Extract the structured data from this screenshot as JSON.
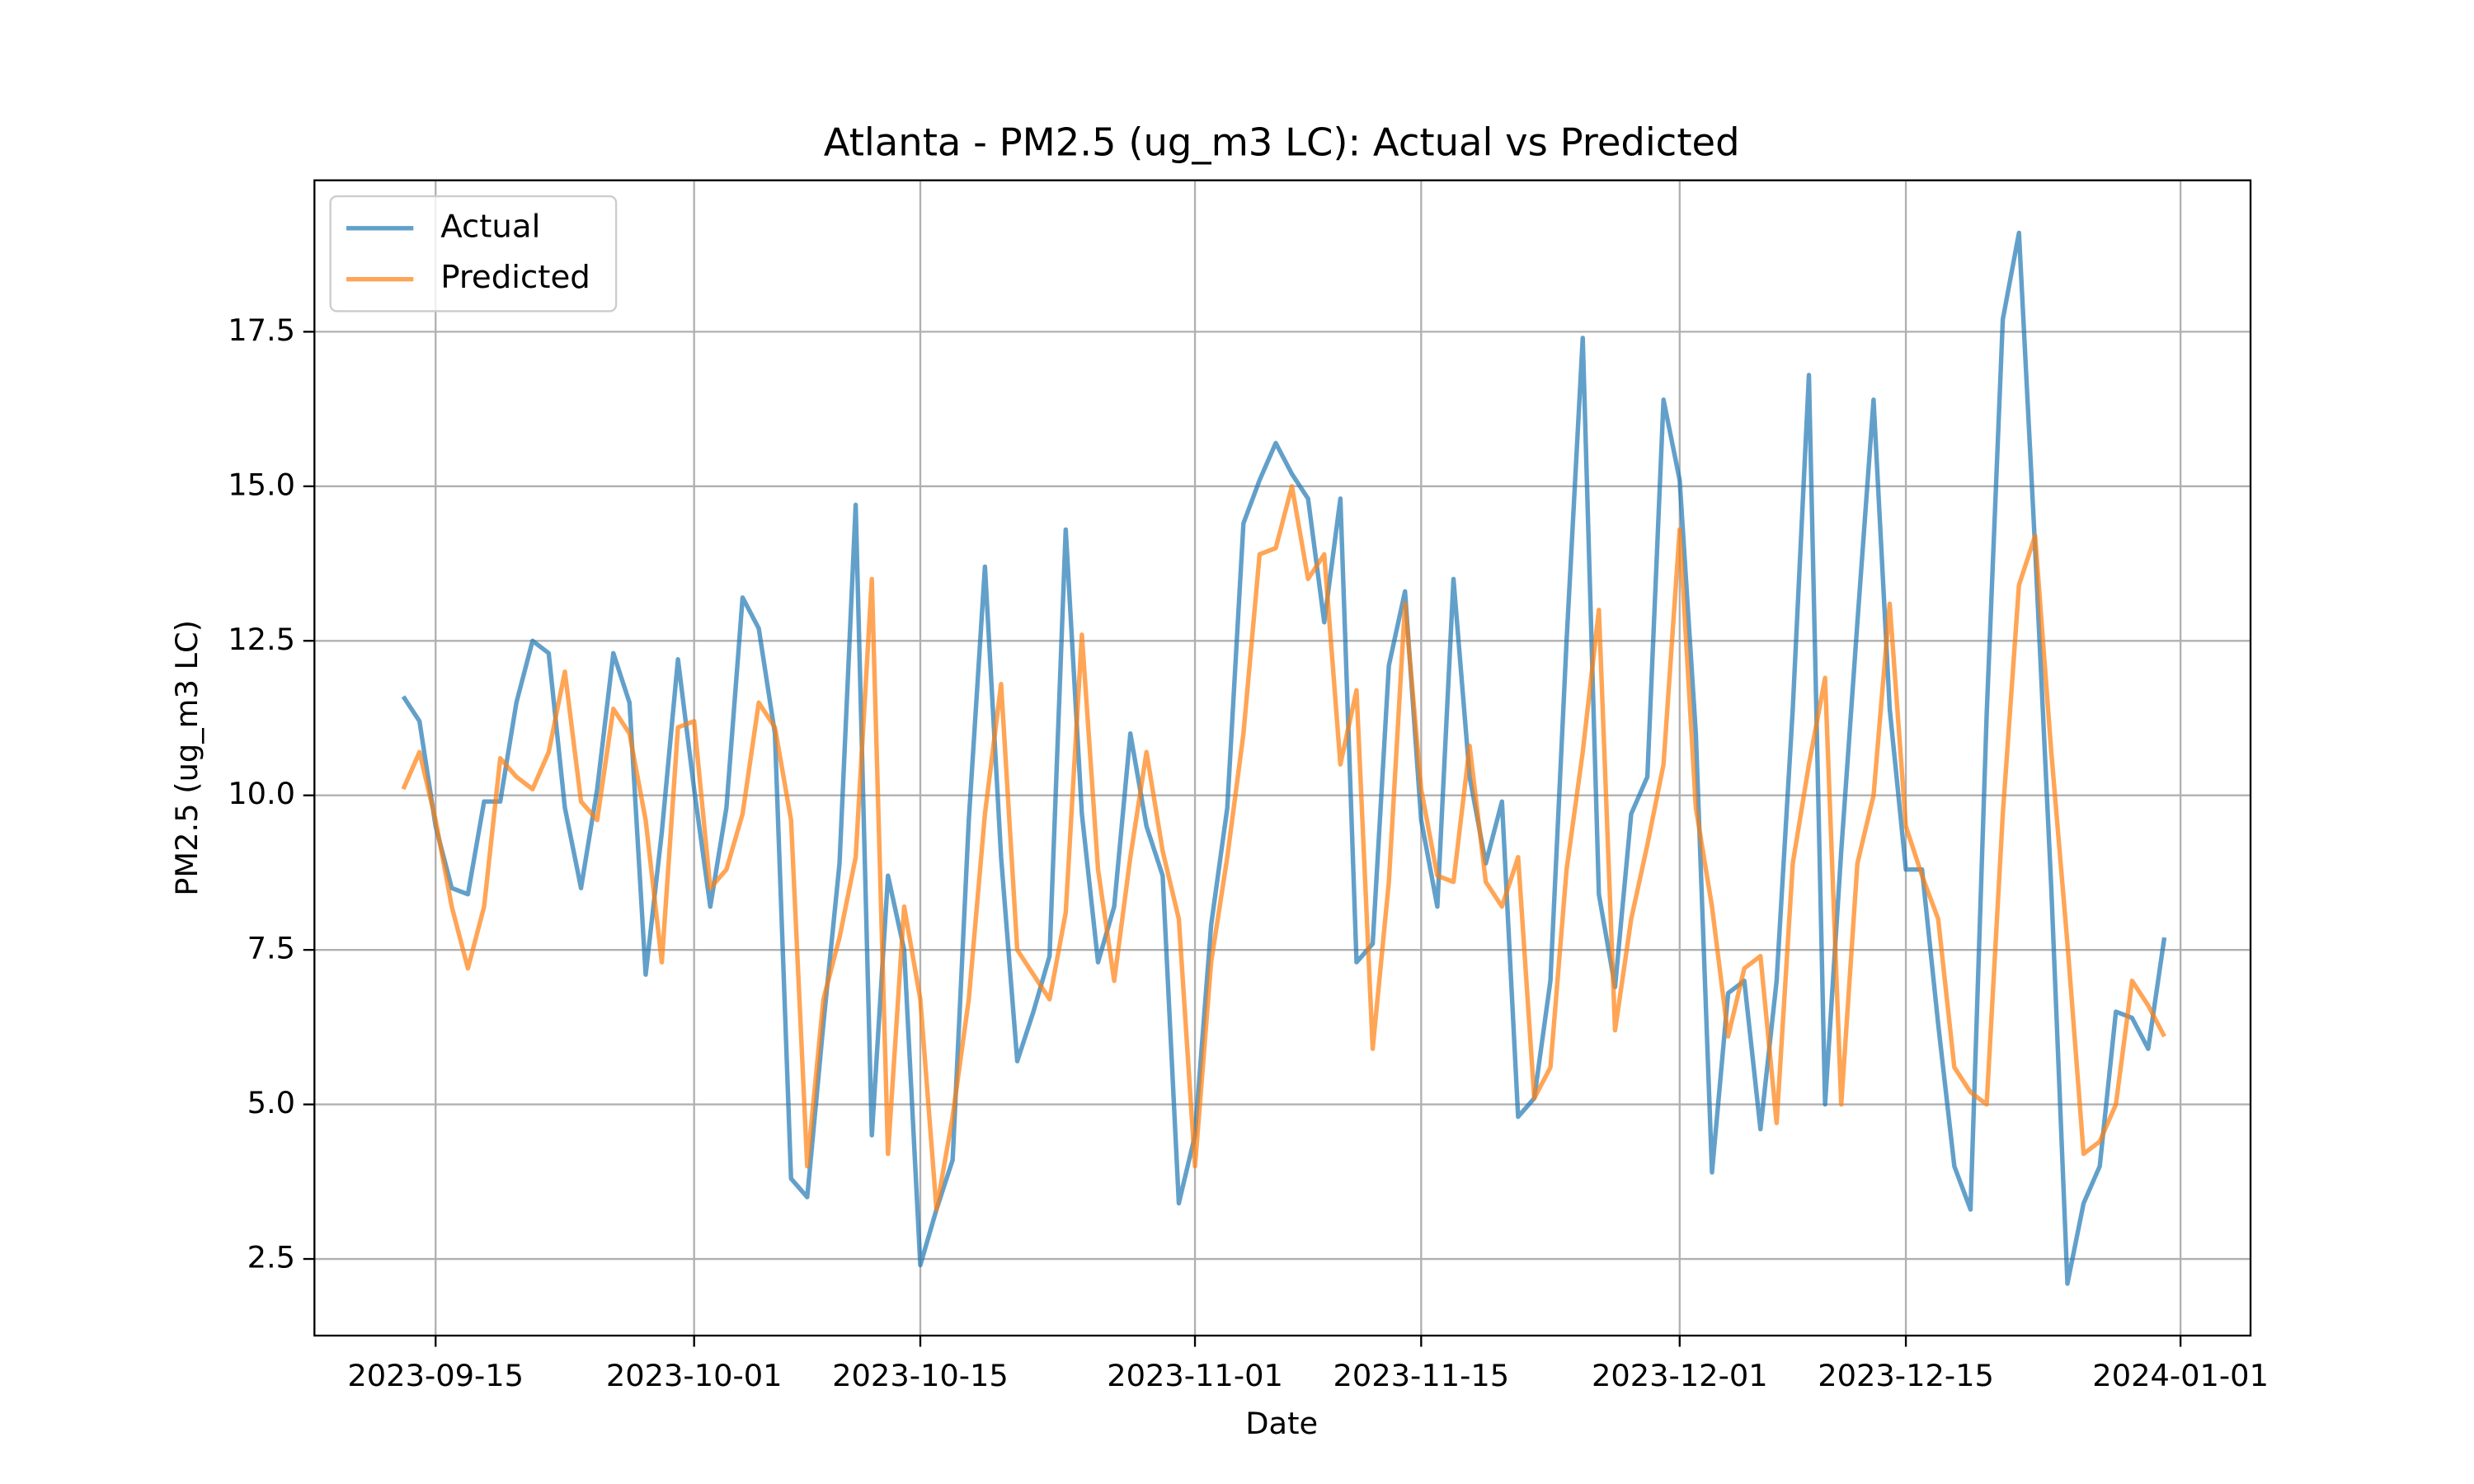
{
  "chart_data": {
    "type": "line",
    "title": "Atlanta - PM2.5 (ug_m3 LC): Actual vs Predicted",
    "x_label": "Date",
    "y_label": "PM2.5 (ug_m3 LC)",
    "x": [
      "2023-09-13",
      "2023-09-14",
      "2023-09-15",
      "2023-09-16",
      "2023-09-17",
      "2023-09-18",
      "2023-09-19",
      "2023-09-20",
      "2023-09-21",
      "2023-09-22",
      "2023-09-23",
      "2023-09-24",
      "2023-09-25",
      "2023-09-26",
      "2023-09-27",
      "2023-09-28",
      "2023-09-29",
      "2023-09-30",
      "2023-10-01",
      "2023-10-02",
      "2023-10-03",
      "2023-10-04",
      "2023-10-05",
      "2023-10-06",
      "2023-10-07",
      "2023-10-08",
      "2023-10-09",
      "2023-10-10",
      "2023-10-11",
      "2023-10-12",
      "2023-10-13",
      "2023-10-14",
      "2023-10-15",
      "2023-10-16",
      "2023-10-17",
      "2023-10-18",
      "2023-10-19",
      "2023-10-20",
      "2023-10-21",
      "2023-10-22",
      "2023-10-23",
      "2023-10-24",
      "2023-10-25",
      "2023-10-26",
      "2023-10-27",
      "2023-10-28",
      "2023-10-29",
      "2023-10-30",
      "2023-10-31",
      "2023-11-01",
      "2023-11-02",
      "2023-11-03",
      "2023-11-04",
      "2023-11-05",
      "2023-11-06",
      "2023-11-07",
      "2023-11-08",
      "2023-11-09",
      "2023-11-10",
      "2023-11-11",
      "2023-11-12",
      "2023-11-13",
      "2023-11-14",
      "2023-11-15",
      "2023-11-16",
      "2023-11-17",
      "2023-11-18",
      "2023-11-19",
      "2023-11-20",
      "2023-11-21",
      "2023-11-22",
      "2023-11-23",
      "2023-11-24",
      "2023-11-25",
      "2023-11-26",
      "2023-11-27",
      "2023-11-28",
      "2023-11-29",
      "2023-11-30",
      "2023-12-01",
      "2023-12-02",
      "2023-12-03",
      "2023-12-04",
      "2023-12-05",
      "2023-12-06",
      "2023-12-07",
      "2023-12-08",
      "2023-12-09",
      "2023-12-10",
      "2023-12-11",
      "2023-12-12",
      "2023-12-13",
      "2023-12-14",
      "2023-12-15",
      "2023-12-16",
      "2023-12-17",
      "2023-12-18",
      "2023-12-19",
      "2023-12-20",
      "2023-12-21",
      "2023-12-22",
      "2023-12-23",
      "2023-12-24",
      "2023-12-25",
      "2023-12-26",
      "2023-12-27",
      "2023-12-28",
      "2023-12-29",
      "2023-12-30",
      "2023-12-31"
    ],
    "series": [
      {
        "name": "Actual",
        "color": "#1f77b4",
        "values": [
          11.6,
          11.2,
          9.5,
          8.5,
          8.4,
          9.9,
          9.9,
          11.5,
          12.5,
          12.3,
          9.8,
          8.5,
          10.1,
          12.3,
          11.5,
          7.1,
          9.4,
          12.2,
          10.1,
          8.2,
          9.8,
          13.2,
          12.7,
          11.0,
          3.8,
          3.5,
          6.3,
          8.9,
          14.7,
          4.5,
          8.7,
          7.5,
          2.4,
          3.3,
          4.1,
          9.6,
          13.7,
          9.0,
          5.7,
          6.5,
          7.4,
          14.3,
          9.7,
          7.3,
          8.2,
          11.0,
          9.5,
          8.7,
          3.4,
          4.5,
          7.9,
          9.8,
          14.4,
          15.1,
          15.7,
          15.2,
          14.8,
          12.8,
          14.8,
          7.3,
          7.6,
          12.1,
          13.3,
          9.6,
          8.2,
          13.5,
          10.3,
          8.9,
          9.9,
          4.8,
          5.1,
          7.0,
          12.5,
          17.4,
          8.4,
          6.9,
          9.7,
          10.3,
          16.4,
          15.1,
          11.0,
          3.9,
          6.8,
          7.0,
          4.6,
          7.0,
          11.4,
          16.8,
          5.0,
          9.1,
          12.8,
          16.4,
          11.4,
          8.8,
          8.8,
          6.3,
          4.0,
          3.3,
          11.3,
          17.7,
          19.1,
          14.0,
          8.5,
          2.1,
          3.4,
          4.0,
          6.5,
          6.4,
          5.9,
          7.7
        ]
      },
      {
        "name": "Predicted",
        "color": "#ff7f0e",
        "values": [
          10.1,
          10.7,
          9.6,
          8.2,
          7.2,
          8.2,
          10.6,
          10.3,
          10.1,
          10.7,
          12.0,
          9.9,
          9.6,
          11.4,
          11.0,
          9.6,
          7.3,
          11.1,
          11.2,
          8.5,
          8.8,
          9.7,
          11.5,
          11.1,
          9.6,
          4.0,
          6.7,
          7.7,
          9.0,
          13.5,
          4.2,
          8.2,
          6.7,
          3.3,
          4.8,
          6.7,
          9.7,
          11.8,
          7.5,
          7.1,
          6.7,
          8.1,
          12.6,
          8.8,
          7.0,
          9.0,
          10.7,
          9.1,
          8.0,
          4.0,
          7.3,
          9.0,
          11.0,
          13.9,
          14.0,
          15.0,
          13.5,
          13.9,
          10.5,
          11.7,
          5.9,
          8.6,
          13.1,
          10.1,
          8.7,
          8.6,
          10.8,
          8.6,
          8.2,
          9.0,
          5.1,
          5.6,
          8.8,
          10.7,
          13.0,
          6.2,
          8.0,
          9.2,
          10.5,
          14.3,
          9.8,
          8.2,
          6.1,
          7.2,
          7.4,
          4.7,
          8.9,
          10.5,
          11.9,
          5.0,
          8.9,
          10.0,
          13.1,
          9.5,
          8.7,
          8.0,
          5.6,
          5.2,
          5.0,
          9.7,
          13.4,
          14.2,
          10.7,
          7.6,
          4.2,
          4.4,
          5.0,
          7.0,
          6.6,
          6.1
        ]
      }
    ],
    "xlim": [
      "2023-09-07T12:00:00Z",
      "2024-01-05T08:00:00Z"
    ],
    "xticks": [
      "2023-09-15",
      "2023-10-01",
      "2023-10-15",
      "2023-11-01",
      "2023-11-15",
      "2023-12-01",
      "2023-12-15",
      "2024-01-01"
    ],
    "ylim": [
      1.26,
      19.95
    ],
    "yticks": [
      2.5,
      5.0,
      7.5,
      10.0,
      12.5,
      15.0,
      17.5
    ],
    "grid": true,
    "legend": "upper left"
  }
}
